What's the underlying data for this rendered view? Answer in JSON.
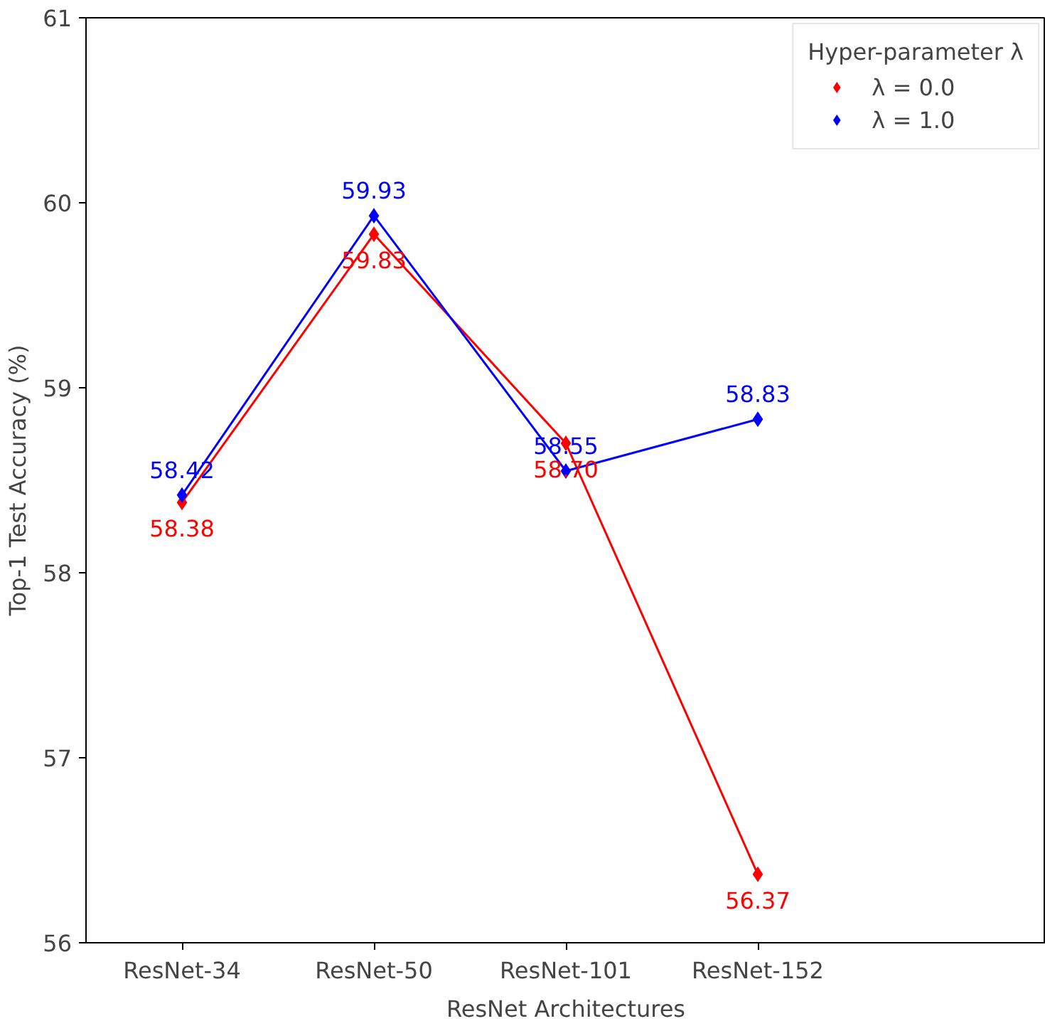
{
  "chart_data": {
    "type": "line",
    "xlabel": "ResNet Architectures",
    "ylabel": "Top-1 Test Accuracy (%)",
    "legend_title": "Hyper-parameter λ",
    "categories": [
      "ResNet-34",
      "ResNet-50",
      "ResNet-101",
      "ResNet-152"
    ],
    "series": [
      {
        "name": "λ = 0.0",
        "color": "#ff0000",
        "values": [
          58.38,
          59.83,
          58.7,
          56.37
        ],
        "value_labels": [
          "58.38",
          "59.83",
          "58.70",
          "56.37"
        ]
      },
      {
        "name": "λ = 1.0",
        "color": "#0000ff",
        "values": [
          58.42,
          59.93,
          58.55,
          58.83
        ],
        "value_labels": [
          "58.42",
          "59.93",
          "58.55",
          "58.83"
        ]
      }
    ],
    "ylim": [
      56,
      61
    ],
    "yticks": [
      56,
      57,
      58,
      59,
      60,
      61
    ],
    "grid": false,
    "legend": "top right",
    "marker": "diamond",
    "line_style": "solid"
  }
}
